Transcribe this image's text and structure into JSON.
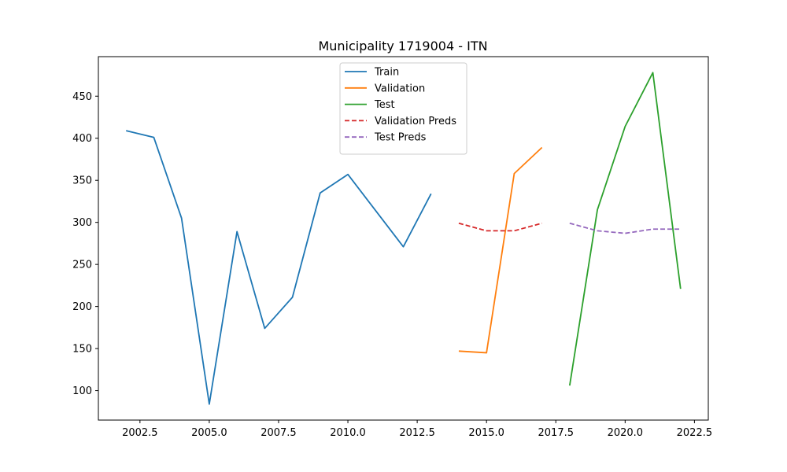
{
  "chart_data": {
    "type": "line",
    "title": "Municipality 1719004 - ITN",
    "xlabel": "",
    "ylabel": "",
    "xlim": [
      2001,
      2023
    ],
    "ylim": [
      65,
      497
    ],
    "xticks": [
      2002.5,
      2005.0,
      2007.5,
      2010.0,
      2012.5,
      2015.0,
      2017.5,
      2020.0,
      2022.5
    ],
    "xtick_labels": [
      "2002.5",
      "2005.0",
      "2007.5",
      "2010.0",
      "2012.5",
      "2015.0",
      "2017.5",
      "2020.0",
      "2022.5"
    ],
    "yticks": [
      100,
      150,
      200,
      250,
      300,
      350,
      400,
      450
    ],
    "ytick_labels": [
      "100",
      "150",
      "200",
      "250",
      "300",
      "350",
      "400",
      "450"
    ],
    "grid": false,
    "legend_placement": "upper center",
    "series": [
      {
        "name": "Train",
        "color": "#1f77b4",
        "dash": "solid",
        "x": [
          2002,
          2003,
          2004,
          2005,
          2006,
          2007,
          2008,
          2009,
          2010,
          2011,
          2012,
          2013
        ],
        "values": [
          409,
          401,
          305,
          84,
          289,
          174,
          211,
          335,
          357,
          314,
          271,
          334
        ]
      },
      {
        "name": "Validation",
        "color": "#ff7f0e",
        "dash": "solid",
        "x": [
          2014,
          2015,
          2016,
          2017
        ],
        "values": [
          147,
          145,
          358,
          389
        ]
      },
      {
        "name": "Test",
        "color": "#2ca02c",
        "dash": "solid",
        "x": [
          2018,
          2019,
          2020,
          2021,
          2022
        ],
        "values": [
          106,
          315,
          414,
          478,
          221
        ]
      },
      {
        "name": "Validation Preds",
        "color": "#d62728",
        "dash": "dashed",
        "x": [
          2014,
          2015,
          2016,
          2017
        ],
        "values": [
          299,
          290,
          290,
          299
        ]
      },
      {
        "name": "Test Preds",
        "color": "#9467bd",
        "dash": "dashed",
        "x": [
          2018,
          2019,
          2020,
          2021,
          2022
        ],
        "values": [
          299,
          290,
          287,
          292,
          292
        ]
      }
    ]
  }
}
